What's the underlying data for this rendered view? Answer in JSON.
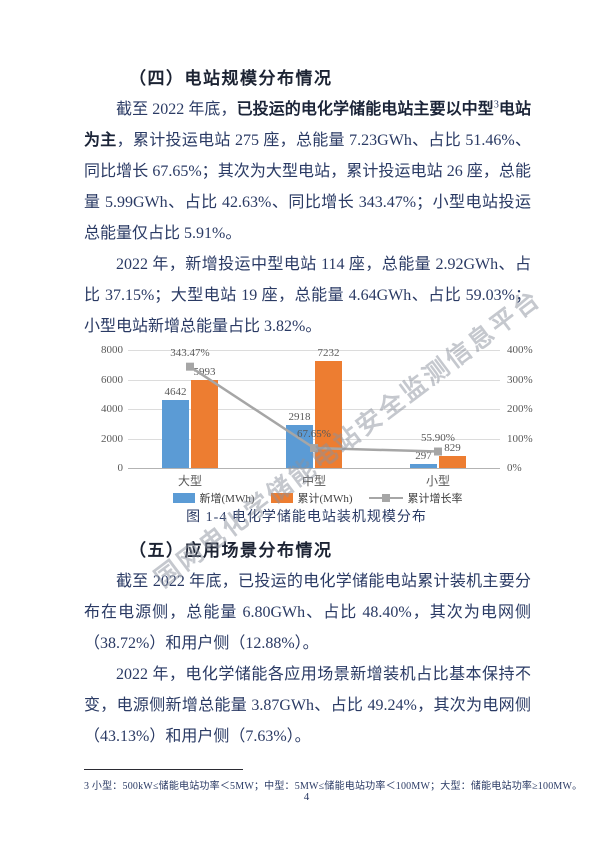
{
  "page": {
    "number": "4"
  },
  "watermark": "国网电化学储能电站安全监测信息平台",
  "section4": {
    "title": "（四）电站规模分布情况"
  },
  "sec4_paragraphs": [
    {
      "runs": [
        {
          "t": "截至 2022 年底，"
        },
        {
          "t": "已投运的电化学储能电站主要以中型",
          "b": true
        },
        {
          "t": "3",
          "sup": true
        },
        {
          "t": "电站为主",
          "b": true
        },
        {
          "t": "，累计投运电站 275 座，总能量 7.23GWh、占比 51.46%、同比增长 67.65%；其次为大型电站，累计投运电站 26 座，总能量 5.99GWh、占比 42.63%、同比增长 343.47%；小型电站投运总能量仅占比 5.91%。"
        }
      ]
    },
    {
      "runs": [
        {
          "t": "2022 年，新增投运中型电站 114 座，总能量 2.92GWh、占比 37.15%；大型电站 19 座，总能量 4.64GWh、占比 59.03%；小型电站新增总能量占比 3.82%。"
        }
      ]
    }
  ],
  "figure_caption": "图 1-4 电化学储能电站装机规模分布",
  "section5": {
    "title": "（五）应用场景分布情况"
  },
  "sec5_paragraphs": [
    {
      "runs": [
        {
          "t": "截至 2022 年底，已投运的电化学储能电站累计装机主要分布在电源侧，总能量 6.80GWh、占比 48.40%，其次为电网侧（38.72%）和用户侧（12.88%）。"
        }
      ]
    },
    {
      "runs": [
        {
          "t": "2022 年，电化学储能各应用场景新增装机占比基本保持不变，电源侧新增总能量 3.87GWh、占比 49.24%，其次为电网侧（43.13%）和用户侧（7.63%）。"
        }
      ]
    }
  ],
  "footnote": "3 小型：500kW≤储能电站功率＜5MW；中型：5MW≤储能电站功率＜100MW；大型：储能电站功率≥100MW。",
  "chart_data": {
    "type": "bar",
    "title": "",
    "categories": [
      "大型",
      "中型",
      "小型"
    ],
    "series": [
      {
        "name": "新增(MWh)",
        "kind": "bar",
        "color": "#5b9bd5",
        "values": [
          4642,
          2918,
          297
        ]
      },
      {
        "name": "累计(MWh)",
        "kind": "bar",
        "color": "#ed7d31",
        "values": [
          5993,
          7232,
          829
        ]
      },
      {
        "name": "累计增长率",
        "kind": "line",
        "color": "#a6a6a6",
        "values": [
          343.47,
          67.65,
          55.9
        ],
        "labels": [
          "343.47%",
          "67.65%",
          "55.90%"
        ]
      }
    ],
    "left_axis": {
      "ticks": [
        8000,
        6000,
        4000,
        2000,
        0
      ],
      "max": 8000
    },
    "right_axis": {
      "ticks": [
        "400%",
        "300%",
        "200%",
        "100%",
        "0%"
      ],
      "max": 400
    },
    "grid": true,
    "legend_position": "bottom"
  }
}
